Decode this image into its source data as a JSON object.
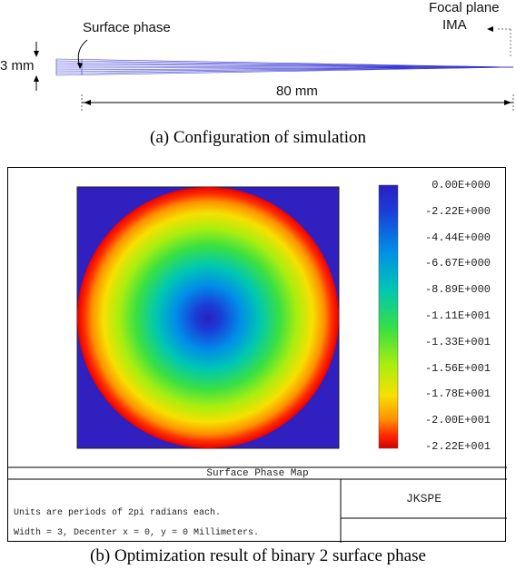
{
  "config": {
    "surface_label": "Surface phase",
    "focal_label_line1": "Focal plane",
    "focal_label_line2": "IMA",
    "height_label": "3 mm",
    "length_label": "80 mm",
    "ray_color": "#3b3bd6"
  },
  "caption_a": "(a) Configuration of simulation",
  "phase_map": {
    "colorbar_labels": [
      "0.00E+000",
      "-2.22E+000",
      "-4.44E+000",
      "-6.67E+000",
      "-8.89E+000",
      "-1.11E+001",
      "-1.33E+001",
      "-1.56E+001",
      "-1.78E+001",
      "-2.00E+001",
      "-2.22E+001"
    ],
    "colorbar_min": -22.2,
    "colorbar_max": 0.0,
    "title": "Surface Phase Map",
    "note_line1": "Units are periods of 2pi radians each.",
    "note_line2": "Width = 3, Decenter x = 0, y = 0 Millimeters.",
    "brand": "JKSPE",
    "background_color": "#3020c0"
  },
  "caption_b": "(b) Optimization result of binary 2 surface phase"
}
